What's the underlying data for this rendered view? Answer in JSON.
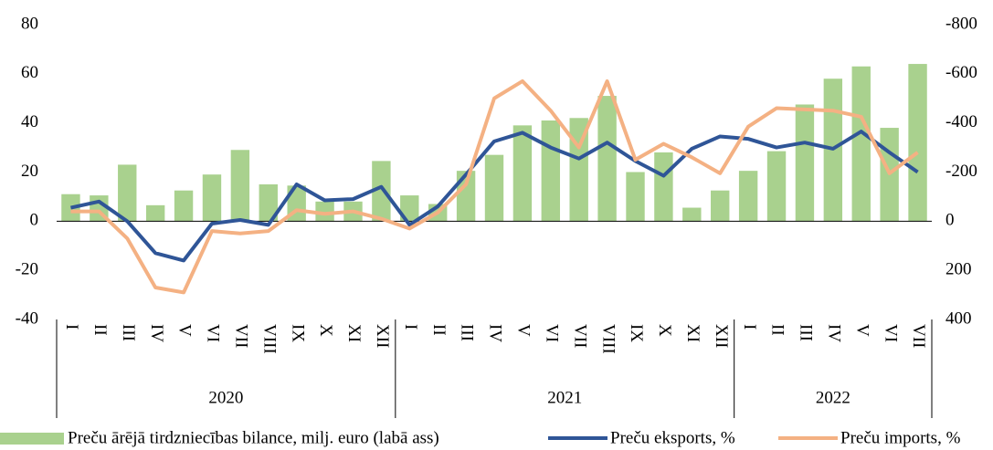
{
  "chart_data": {
    "type": "combo",
    "categories": [
      "I",
      "II",
      "III",
      "IV",
      "V",
      "VI",
      "VII",
      "VIII",
      "IX",
      "X",
      "XI",
      "XII",
      "I",
      "II",
      "III",
      "IV",
      "V",
      "VI",
      "VII",
      "VIII",
      "IX",
      "X",
      "XI",
      "XII",
      "I",
      "II",
      "III",
      "IV",
      "V",
      "VI",
      "VII"
    ],
    "groups": [
      "2020",
      "2020",
      "2020",
      "2020",
      "2020",
      "2020",
      "2020",
      "2020",
      "2020",
      "2020",
      "2020",
      "2020",
      "2021",
      "2021",
      "2021",
      "2021",
      "2021",
      "2021",
      "2021",
      "2021",
      "2021",
      "2021",
      "2021",
      "2021",
      "2022",
      "2022",
      "2022",
      "2022",
      "2022",
      "2022",
      "2022"
    ],
    "series": [
      {
        "name": "Preču ārējā tirdzniecības bilance, milj. euro (labā ass)",
        "type": "bar",
        "axis": "y2",
        "color": "#a9d18e",
        "values": [
          -110,
          -105,
          -230,
          -65,
          -125,
          -190,
          -290,
          -150,
          -145,
          -80,
          -80,
          -245,
          -105,
          -70,
          -205,
          -270,
          -390,
          -410,
          -420,
          -510,
          -200,
          -280,
          -55,
          -125,
          -205,
          -285,
          -475,
          -580,
          -630,
          -380,
          -640
        ]
      },
      {
        "name": "Preču eksports, %",
        "type": "line",
        "color": "#2f5597",
        "values": [
          5.5,
          8,
          0,
          -13,
          -16,
          -1,
          0.5,
          -1.5,
          15,
          8.5,
          9,
          14,
          -1.5,
          6,
          19,
          32.5,
          36,
          30,
          25.5,
          32,
          24.5,
          18.5,
          29.5,
          34.5,
          33.5,
          30,
          32,
          29.5,
          36.5,
          28,
          20
        ]
      },
      {
        "name": "Preču imports, %",
        "type": "line",
        "color": "#f4b183",
        "values": [
          4,
          4,
          -7,
          -27,
          -29,
          -4,
          -5,
          -4,
          4.5,
          3,
          4,
          1,
          -3,
          3.5,
          15,
          50,
          57,
          45,
          30,
          57,
          25,
          31.5,
          26,
          19.5,
          38.5,
          46,
          45.5,
          45,
          42.5,
          19.5,
          28
        ]
      }
    ],
    "ylim": [
      -40,
      80
    ],
    "yticks": [
      -40,
      -20,
      0,
      20,
      40,
      60,
      80
    ],
    "y2lim": [
      400,
      -800
    ],
    "y2ticks": [
      400,
      200,
      0,
      -200,
      -400,
      -600,
      -800
    ],
    "legend": "bottom"
  }
}
